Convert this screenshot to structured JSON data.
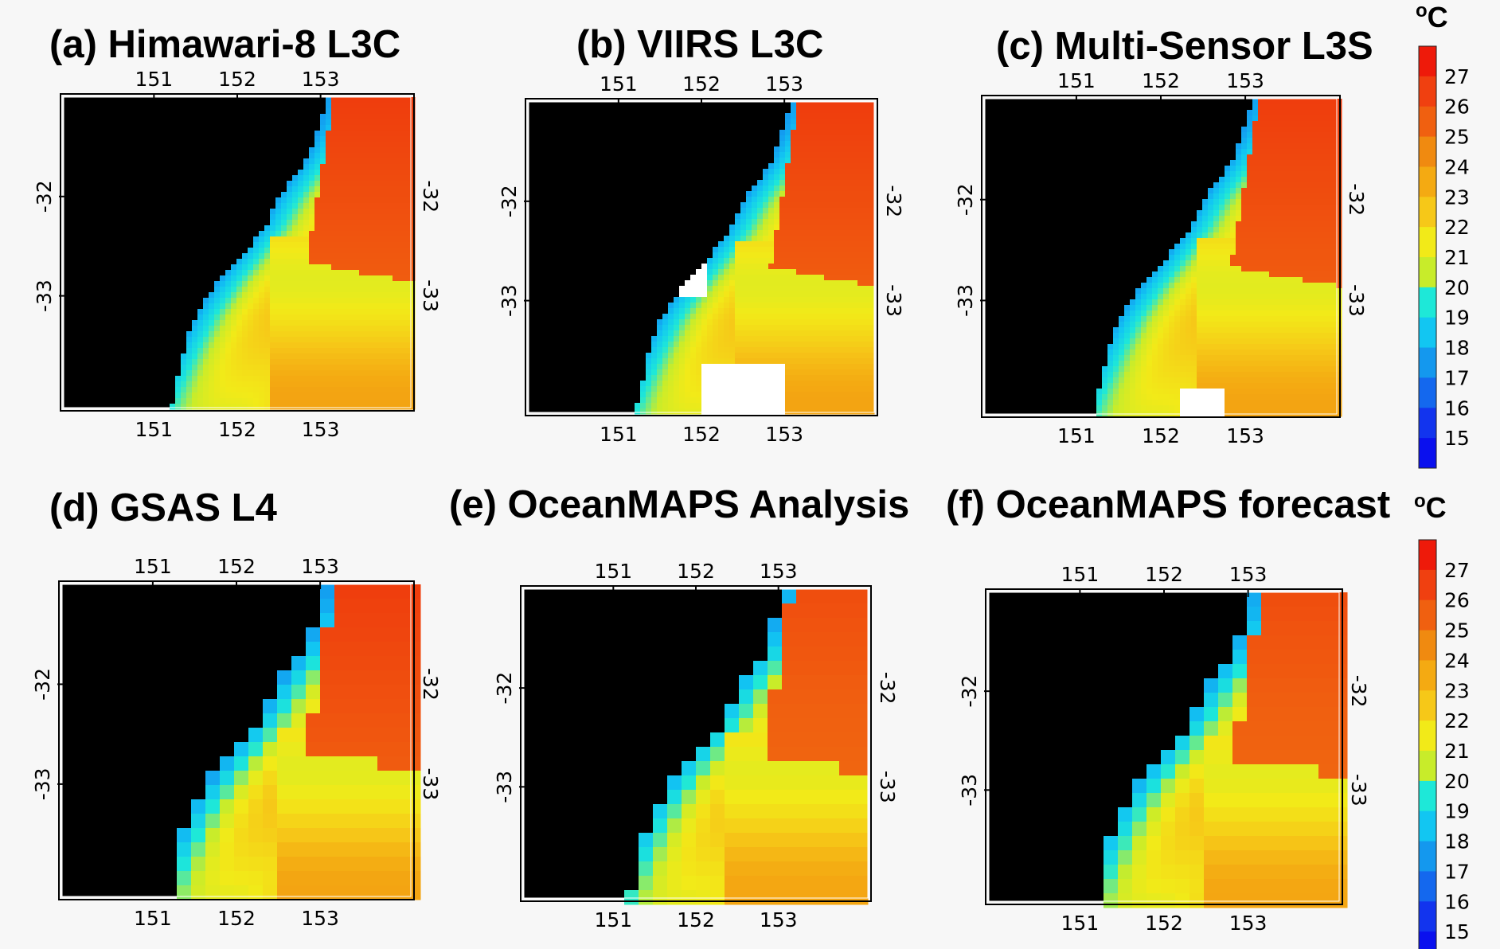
{
  "panels": [
    {
      "id": "a",
      "title": "(a) Himawari-8 L3C",
      "x_ticks": [
        "151",
        "152",
        "153"
      ],
      "y_ticks": [
        "-32",
        "-33"
      ],
      "style": "l3c-himawari"
    },
    {
      "id": "b",
      "title": "(b) VIIRS L3C",
      "x_ticks": [
        "151",
        "152",
        "153"
      ],
      "y_ticks": [
        "-32",
        "-33"
      ],
      "style": "l3c-viirs"
    },
    {
      "id": "c",
      "title": "(c) Multi-Sensor L3S",
      "x_ticks": [
        "151",
        "152",
        "153"
      ],
      "y_ticks": [
        "-32",
        "-33"
      ],
      "style": "l3s"
    },
    {
      "id": "d",
      "title": "(d) GSAS L4",
      "x_ticks": [
        "151",
        "152",
        "153"
      ],
      "y_ticks": [
        "-32",
        "-33"
      ],
      "style": "l4"
    },
    {
      "id": "e",
      "title": "(e) OceanMAPS Analysis",
      "x_ticks": [
        "151",
        "152",
        "153"
      ],
      "y_ticks": [
        "-32",
        "-33"
      ],
      "style": "model"
    },
    {
      "id": "f",
      "title": "(f) OceanMAPS forecast",
      "x_ticks": [
        "151",
        "152",
        "153"
      ],
      "y_ticks": [
        "-32",
        "-33"
      ],
      "style": "model-forecast"
    }
  ],
  "colorbar": {
    "unit_degree": "o",
    "unit_letter": "C",
    "labels": [
      "27",
      "26",
      "25",
      "24",
      "23",
      "22",
      "21",
      "20",
      "19",
      "18",
      "17",
      "16",
      "15"
    ],
    "colors": [
      "#ee1a0a",
      "#f04010",
      "#f06010",
      "#f08a10",
      "#f4aa12",
      "#f6c818",
      "#f2ea18",
      "#c8ec2a",
      "#1ee8d8",
      "#12c6f2",
      "#1498ee",
      "#1468ee",
      "#1234ee",
      "#0a10ee"
    ]
  },
  "chart_data": {
    "type": "heatmap",
    "x_ticks_deg_lon": [
      151,
      152,
      153
    ],
    "y_ticks_deg_lat": [
      -32,
      -33
    ],
    "value_unit": "oC",
    "colorbar_range": [
      15,
      28
    ]
  }
}
